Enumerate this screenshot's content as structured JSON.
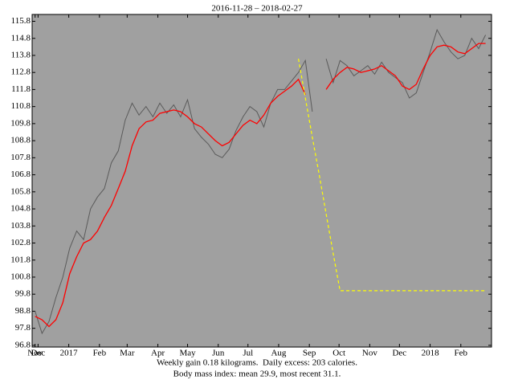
{
  "chart_data": {
    "type": "line",
    "title": "2016-11-28 – 2018-02-27",
    "x": [
      "2016-11-28",
      "2016-12-05",
      "2016-12-12",
      "2016-12-19",
      "2016-12-26",
      "2017-01-02",
      "2017-01-09",
      "2017-01-16",
      "2017-01-23",
      "2017-01-30",
      "2017-02-06",
      "2017-02-13",
      "2017-02-20",
      "2017-02-27",
      "2017-03-06",
      "2017-03-13",
      "2017-03-20",
      "2017-03-27",
      "2017-04-03",
      "2017-04-10",
      "2017-04-17",
      "2017-04-24",
      "2017-05-01",
      "2017-05-08",
      "2017-05-15",
      "2017-05-22",
      "2017-05-29",
      "2017-06-05",
      "2017-06-12",
      "2017-06-19",
      "2017-06-26",
      "2017-07-03",
      "2017-07-10",
      "2017-07-17",
      "2017-07-24",
      "2017-07-31",
      "2017-08-07",
      "2017-08-14",
      "2017-08-21",
      "2017-08-28",
      "2017-09-04",
      "2017-09-11",
      "2017-09-18",
      "2017-09-25",
      "2017-10-02",
      "2017-10-09",
      "2017-10-16",
      "2017-10-23",
      "2017-10-30",
      "2017-11-06",
      "2017-11-13",
      "2017-11-20",
      "2017-11-27",
      "2017-12-04",
      "2017-12-11",
      "2017-12-18",
      "2017-12-25",
      "2018-01-01",
      "2018-01-08",
      "2018-01-15",
      "2018-01-22",
      "2018-01-29",
      "2018-02-05",
      "2018-02-12",
      "2018-02-19",
      "2018-02-26"
    ],
    "series": [
      {
        "color": "#5a5a5a",
        "width": 1,
        "dash": false,
        "values": [
          98.8,
          97.5,
          98.2,
          99.6,
          100.8,
          102.5,
          103.5,
          103.0,
          104.8,
          105.5,
          106.0,
          107.5,
          108.2,
          110.0,
          111.0,
          110.3,
          110.8,
          110.2,
          111.0,
          110.4,
          110.9,
          110.2,
          111.2,
          109.5,
          109.0,
          108.6,
          108.0,
          107.8,
          108.3,
          109.4,
          110.2,
          110.8,
          110.5,
          109.6,
          111.0,
          111.8,
          111.8,
          112.3,
          112.8,
          113.5,
          110.5,
          null,
          113.6,
          112.2,
          113.5,
          113.2,
          112.6,
          112.9,
          113.2,
          112.7,
          113.4,
          112.8,
          112.5,
          112.2,
          111.3,
          111.6,
          112.8,
          114.0,
          115.3,
          114.6,
          114.0,
          113.6,
          113.8,
          114.8,
          114.2,
          115.0
        ]
      },
      {
        "color": "#ff0000",
        "width": 1.3,
        "dash": false,
        "values": [
          98.5,
          98.3,
          97.9,
          98.3,
          99.3,
          101.0,
          102.0,
          102.8,
          103.0,
          103.5,
          104.3,
          105.0,
          106.0,
          107.0,
          108.5,
          109.5,
          109.9,
          110.0,
          110.4,
          110.5,
          110.6,
          110.5,
          110.2,
          109.8,
          109.6,
          109.2,
          108.8,
          108.5,
          108.7,
          109.2,
          109.7,
          110.0,
          109.8,
          110.3,
          111.0,
          111.4,
          111.7,
          112.0,
          112.4,
          111.5,
          null,
          null,
          111.8,
          112.4,
          112.8,
          113.1,
          113.0,
          112.8,
          112.9,
          113.0,
          113.2,
          112.9,
          112.6,
          112.0,
          111.8,
          112.1,
          113.0,
          113.8,
          114.3,
          114.4,
          114.3,
          114.0,
          113.9,
          114.2,
          114.5,
          114.5
        ]
      },
      {
        "color": "#ffff00",
        "width": 1.2,
        "dash": true,
        "values": [
          null,
          null,
          null,
          null,
          null,
          null,
          null,
          null,
          null,
          null,
          null,
          null,
          null,
          null,
          null,
          null,
          null,
          null,
          null,
          null,
          null,
          null,
          null,
          null,
          null,
          null,
          null,
          null,
          null,
          null,
          null,
          null,
          null,
          null,
          null,
          null,
          null,
          null,
          113.6,
          111.3,
          109.0,
          106.8,
          104.5,
          102.2,
          100.0,
          100.0,
          100.0,
          100.0,
          100.0,
          100.0,
          100.0,
          100.0,
          100.0,
          100.0,
          100.0,
          100.0,
          100.0,
          100.0,
          100.0,
          100.0,
          100.0,
          100.0,
          100.0,
          100.0,
          100.0,
          100.0
        ]
      }
    ],
    "xlim": [
      "2016-11-25",
      "2018-03-04"
    ],
    "xticks": [
      {
        "value": "2016-11-28",
        "label": "Nov"
      },
      {
        "value": "2016-12-01",
        "label": "Dec"
      },
      {
        "value": "2017-01-01",
        "label": "2017"
      },
      {
        "value": "2017-02-01",
        "label": "Feb"
      },
      {
        "value": "2017-03-01",
        "label": "Mar"
      },
      {
        "value": "2017-04-01",
        "label": "Apr"
      },
      {
        "value": "2017-05-01",
        "label": "May"
      },
      {
        "value": "2017-06-01",
        "label": "Jun"
      },
      {
        "value": "2017-07-01",
        "label": "Jul"
      },
      {
        "value": "2017-08-01",
        "label": "Aug"
      },
      {
        "value": "2017-09-01",
        "label": "Sep"
      },
      {
        "value": "2017-10-01",
        "label": "Oct"
      },
      {
        "value": "2017-11-01",
        "label": "Nov"
      },
      {
        "value": "2017-12-01",
        "label": "Dec"
      },
      {
        "value": "2018-01-01",
        "label": "2018"
      },
      {
        "value": "2018-02-01",
        "label": "Feb"
      }
    ],
    "ylim": [
      96.7,
      116.2
    ],
    "yticks": [
      96.8,
      97.8,
      98.8,
      99.8,
      100.8,
      101.8,
      102.8,
      103.8,
      104.8,
      105.8,
      106.8,
      107.8,
      108.8,
      109.8,
      110.8,
      111.8,
      112.8,
      113.8,
      114.8,
      115.8
    ],
    "plot_background": "#a0a0a0",
    "notes": [
      "Weekly gain 0.18 kilograms.  Daily excess: 203 calories.",
      "Body mass index: mean 29.9, most recent 31.1."
    ]
  }
}
